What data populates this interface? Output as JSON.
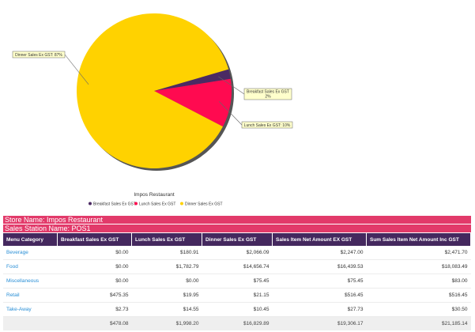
{
  "chart_data": {
    "type": "pie",
    "title": "Impos Restaurant",
    "slices": [
      {
        "name": "Breakfast Sales Ex GST",
        "value": 2,
        "label": "Breakfast Sales Ex GST: 2%",
        "color": "#4b2a63"
      },
      {
        "name": "Lunch Sales Ex GST",
        "value": 10,
        "label": "Lunch Sales Ex GST: 10%",
        "color": "#ff0a50"
      },
      {
        "name": "Dinner Sales Ex GST",
        "value": 87,
        "label": "Dinner Sales Ex GST: 87%",
        "color": "#ffd200"
      }
    ],
    "legend_position": "bottom"
  },
  "store_name": "Store Name: Impos Restaurant",
  "sales_station": "Sales Station Name: POS1",
  "table": {
    "headers": [
      "Menu Category",
      "Breakfast Sales Ex GST",
      "Lunch Sales Ex GST",
      "Dinner Sales Ex GST",
      "Sales Item Net Amount EX GST",
      "Sum Sales Item Net Amount Inc GST"
    ],
    "rows": [
      [
        "Beverage",
        "$0.00",
        "$180.91",
        "$2,066.09",
        "$2,247.00",
        "$2,471.70"
      ],
      [
        "Food",
        "$0.00",
        "$1,782.79",
        "$14,656.74",
        "$16,439.53",
        "$18,083.49"
      ],
      [
        "Miscellaneous",
        "$0.00",
        "$0.00",
        "$75.45",
        "$75.45",
        "$83.00"
      ],
      [
        "Retail",
        "$475.35",
        "$19.95",
        "$21.15",
        "$516.45",
        "$516.45"
      ],
      [
        "Take-Away",
        "$2.73",
        "$14.55",
        "$10.45",
        "$27.73",
        "$30.50"
      ]
    ],
    "totals": [
      "",
      "$478.08",
      "$1,998.20",
      "$16,829.89",
      "$19,306.17",
      "$21,185.14"
    ]
  },
  "colors": {
    "header_bg": "#44285e",
    "store_bar": "#e23a6a",
    "link": "#2a8fd6"
  }
}
